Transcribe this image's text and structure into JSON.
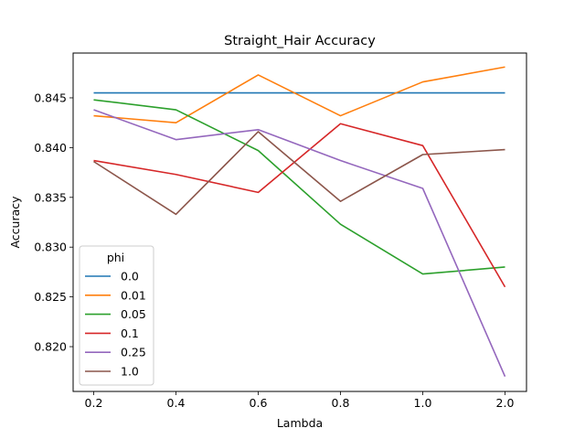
{
  "chart_data": {
    "type": "line",
    "title": "Straight_Hair Accuracy",
    "xlabel": "Lambda",
    "ylabel": "Accuracy",
    "categories": [
      "0.2",
      "0.4",
      "0.6",
      "0.8",
      "1.0",
      "2.0"
    ],
    "yticks": [
      "0.820",
      "0.825",
      "0.830",
      "0.835",
      "0.840",
      "0.845"
    ],
    "ylim": [
      0.8155,
      0.8495
    ],
    "legend": {
      "title": "phi",
      "placement": "lower-left"
    },
    "series": [
      {
        "name": "0.0",
        "color": "#1f77b4",
        "values": [
          0.8455,
          0.8455,
          0.8455,
          0.8455,
          0.8455,
          0.8455
        ]
      },
      {
        "name": "0.01",
        "color": "#ff7f0e",
        "values": [
          0.8432,
          0.8425,
          0.8473,
          0.8432,
          0.8466,
          0.8481
        ]
      },
      {
        "name": "0.05",
        "color": "#2ca02c",
        "values": [
          0.8448,
          0.8438,
          0.8397,
          0.8323,
          0.8273,
          0.828
        ]
      },
      {
        "name": "0.1",
        "color": "#d62728",
        "values": [
          0.8387,
          0.8373,
          0.8355,
          0.8424,
          0.8402,
          0.826
        ]
      },
      {
        "name": "0.25",
        "color": "#9467bd",
        "values": [
          0.8438,
          0.8408,
          0.8418,
          0.8387,
          0.8359,
          0.817
        ]
      },
      {
        "name": "1.0",
        "color": "#8c564b",
        "values": [
          0.8386,
          0.8333,
          0.8416,
          0.8346,
          0.8393,
          0.8398
        ]
      }
    ]
  }
}
